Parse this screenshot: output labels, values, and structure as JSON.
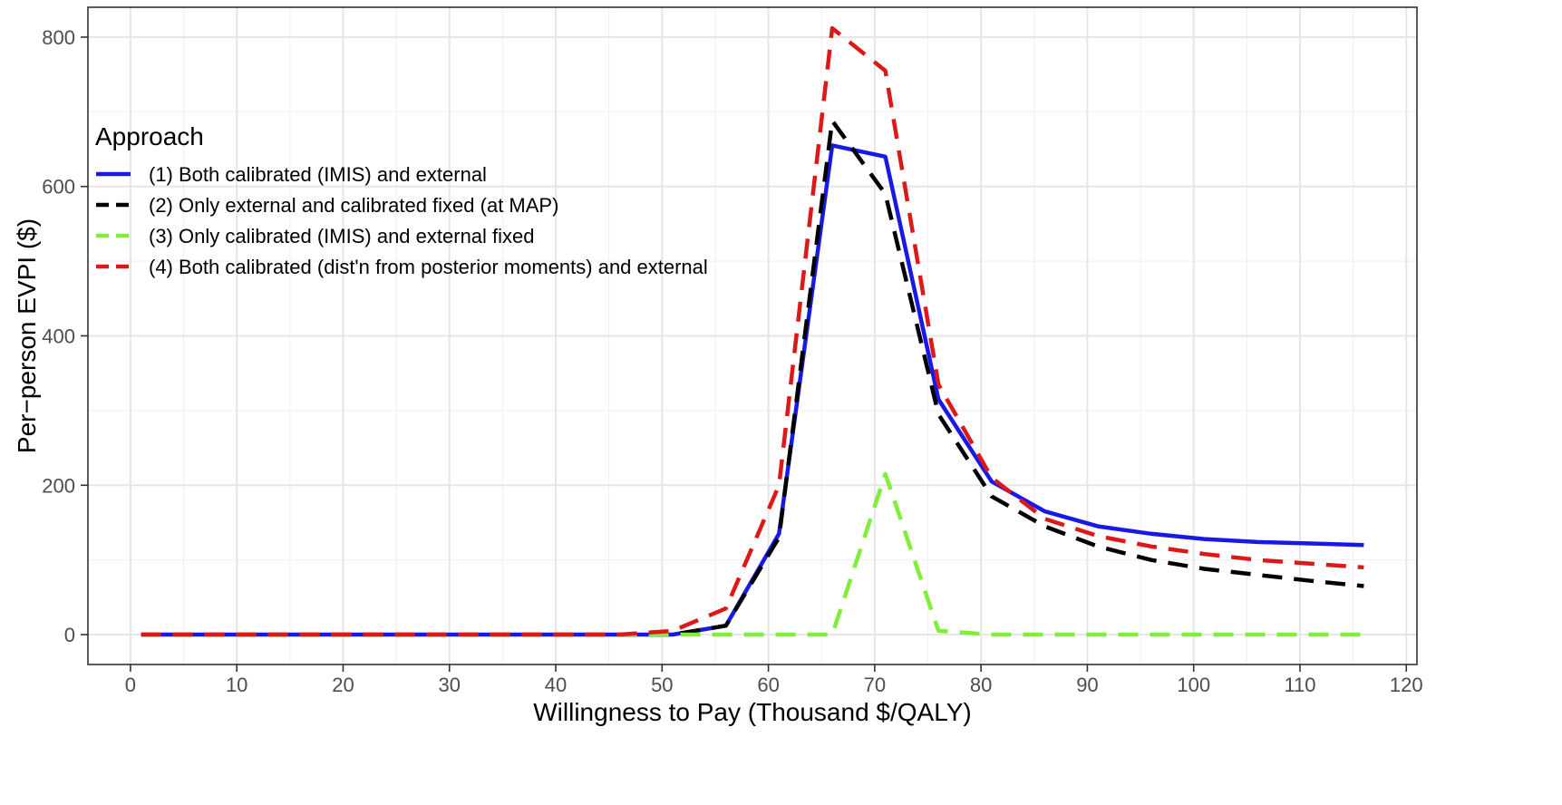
{
  "chart_data": {
    "type": "line",
    "title": "",
    "xlabel": "Willingness to Pay (Thousand $/QALY)",
    "ylabel": "Per−person EVPI ($)",
    "xlim": [
      -4,
      121
    ],
    "ylim": [
      -40,
      840
    ],
    "xticks": [
      0,
      10,
      20,
      30,
      40,
      50,
      60,
      70,
      80,
      90,
      100,
      110,
      120
    ],
    "yticks": [
      0,
      200,
      400,
      600,
      800
    ],
    "x_tick_labels": [
      "0",
      "10",
      "20",
      "30",
      "40",
      "50",
      "60",
      "70",
      "80",
      "90",
      "100",
      "110",
      "120"
    ],
    "y_tick_labels": [
      "0",
      "200",
      "400",
      "600",
      "800"
    ],
    "grid": true,
    "legend": {
      "title": "Approach",
      "placement": "top-left inside"
    },
    "x": [
      1,
      6,
      11,
      16,
      21,
      26,
      31,
      36,
      41,
      46,
      51,
      56,
      61,
      66,
      71,
      76,
      81,
      86,
      91,
      96,
      101,
      106,
      111,
      116
    ],
    "series": [
      {
        "name": "(1) Both calibrated (IMIS) and external",
        "color": "#1919e6",
        "style": "solid",
        "values": [
          0,
          0,
          0,
          0,
          0,
          0,
          0,
          0,
          0,
          0,
          0,
          12,
          135,
          655,
          640,
          315,
          205,
          165,
          145,
          135,
          128,
          124,
          122,
          120
        ]
      },
      {
        "name": "(2) Only external and calibrated fixed (at MAP)",
        "color": "#000000",
        "style": "dashed",
        "values": [
          0,
          0,
          0,
          0,
          0,
          0,
          0,
          0,
          0,
          0,
          0,
          12,
          130,
          688,
          590,
          295,
          185,
          145,
          118,
          100,
          88,
          80,
          72,
          65
        ]
      },
      {
        "name": "(3) Only calibrated (IMIS) and external fixed",
        "color": "#80ee3a",
        "style": "dashed",
        "values": [
          0,
          0,
          0,
          0,
          0,
          0,
          0,
          0,
          0,
          0,
          0,
          0,
          0,
          0,
          215,
          5,
          0,
          0,
          0,
          0,
          0,
          0,
          0,
          0
        ]
      },
      {
        "name": "(4) Both calibrated (dist'n from posterior moments) and external",
        "color": "#dd1818",
        "style": "dashed",
        "values": [
          0,
          0,
          0,
          0,
          0,
          0,
          0,
          0,
          0,
          0,
          5,
          35,
          200,
          812,
          755,
          335,
          210,
          155,
          132,
          118,
          108,
          100,
          95,
          90
        ]
      }
    ]
  }
}
